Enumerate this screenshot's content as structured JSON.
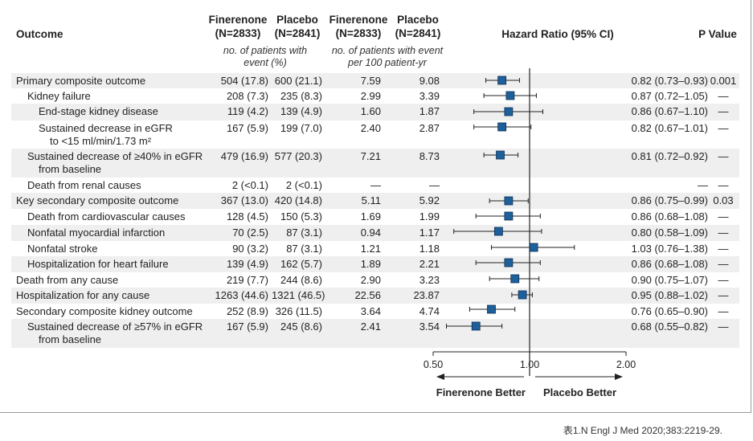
{
  "headers": {
    "outcome": "Outcome",
    "finerenone_events": "Finerenone\n(N=2833)",
    "placebo_events": "Placebo\n(N=2841)",
    "finerenone_rate": "Finerenone\n(N=2833)",
    "placebo_rate": "Placebo\n(N=2841)",
    "hazard_ratio": "Hazard Ratio (95% CI)",
    "p_value": "P Value",
    "events_sub": "no. of patients with\nevent (%)",
    "rate_sub": "no. of patients with event\nper 100 patient-yr"
  },
  "rows": [
    {
      "label": "Primary composite outcome",
      "indent": 0,
      "fin": "504 (17.8)",
      "pla": "600 (21.1)",
      "fin_rate": "7.59",
      "pla_rate": "9.08",
      "hr_text": "0.82 (0.73–0.93)",
      "p": "0.001"
    },
    {
      "label": "Kidney failure",
      "indent": 1,
      "fin": "208 (7.3)",
      "pla": "235 (8.3)",
      "fin_rate": "2.99",
      "pla_rate": "3.39",
      "hr_text": "0.87 (0.72–1.05)",
      "p": "—"
    },
    {
      "label": "End-stage kidney disease",
      "indent": 2,
      "fin": "119 (4.2)",
      "pla": "139 (4.9)",
      "fin_rate": "1.60",
      "pla_rate": "1.87",
      "hr_text": "0.86 (0.67–1.10)",
      "p": "—"
    },
    {
      "label": "Sustained decrease in eGFR",
      "label2": "to <15 ml/min/1.73 m²",
      "indent": 2,
      "fin": "167 (5.9)",
      "pla": "199 (7.0)",
      "fin_rate": "2.40",
      "pla_rate": "2.87",
      "hr_text": "0.82 (0.67–1.01)",
      "p": "—"
    },
    {
      "label": "Sustained decrease of ≥40% in eGFR",
      "label2": "from baseline",
      "indent": 1,
      "fin": "479 (16.9)",
      "pla": "577 (20.3)",
      "fin_rate": "7.21",
      "pla_rate": "8.73",
      "hr_text": "0.81 (0.72–0.92)",
      "p": "—"
    },
    {
      "label": "Death from renal causes",
      "indent": 1,
      "fin": "2 (<0.1)",
      "pla": "2 (<0.1)",
      "fin_rate": "—",
      "pla_rate": "—",
      "hr_text": "—",
      "p": "—"
    },
    {
      "label": "Key secondary composite outcome",
      "indent": 0,
      "fin": "367 (13.0)",
      "pla": "420 (14.8)",
      "fin_rate": "5.11",
      "pla_rate": "5.92",
      "hr_text": "0.86 (0.75–0.99)",
      "p": "0.03"
    },
    {
      "label": "Death from cardiovascular causes",
      "indent": 1,
      "fin": "128 (4.5)",
      "pla": "150 (5.3)",
      "fin_rate": "1.69",
      "pla_rate": "1.99",
      "hr_text": "0.86 (0.68–1.08)",
      "p": "—"
    },
    {
      "label": "Nonfatal myocardial infarction",
      "indent": 1,
      "fin": "70 (2.5)",
      "pla": "87 (3.1)",
      "fin_rate": "0.94",
      "pla_rate": "1.17",
      "hr_text": "0.80 (0.58–1.09)",
      "p": "—"
    },
    {
      "label": "Nonfatal stroke",
      "indent": 1,
      "fin": "90 (3.2)",
      "pla": "87 (3.1)",
      "fin_rate": "1.21",
      "pla_rate": "1.18",
      "hr_text": "1.03 (0.76–1.38)",
      "p": "—"
    },
    {
      "label": "Hospitalization for heart failure",
      "indent": 1,
      "fin": "139 (4.9)",
      "pla": "162 (5.7)",
      "fin_rate": "1.89",
      "pla_rate": "2.21",
      "hr_text": "0.86 (0.68–1.08)",
      "p": "—"
    },
    {
      "label": "Death from any cause",
      "indent": 0,
      "fin": "219 (7.7)",
      "pla": "244 (8.6)",
      "fin_rate": "2.90",
      "pla_rate": "3.23",
      "hr_text": "0.90 (0.75–1.07)",
      "p": "—"
    },
    {
      "label": "Hospitalization for any cause",
      "indent": 0,
      "fin": "1263 (44.6)",
      "pla": "1321 (46.5)",
      "fin_rate": "22.56",
      "pla_rate": "23.87",
      "hr_text": "0.95 (0.88–1.02)",
      "p": "—"
    },
    {
      "label": "Secondary composite kidney outcome",
      "indent": 0,
      "fin": "252 (8.9)",
      "pla": "326 (11.5)",
      "fin_rate": "3.64",
      "pla_rate": "4.74",
      "hr_text": "0.76 (0.65–0.90)",
      "p": "—"
    },
    {
      "label": "Sustained decrease of ≥57% in eGFR",
      "label2": "from baseline",
      "indent": 1,
      "fin": "167 (5.9)",
      "pla": "245 (8.6)",
      "fin_rate": "2.41",
      "pla_rate": "3.54",
      "hr_text": "0.68 (0.55–0.82)",
      "p": "—"
    }
  ],
  "chart_data": {
    "type": "forest",
    "x_scale": "log",
    "xlim": [
      0.5,
      2.0
    ],
    "x_ticks": [
      "0.50",
      "1.00",
      "2.00"
    ],
    "reference_line": 1.0,
    "direction_labels": {
      "left": "Finerenone Better",
      "right": "Placebo Better"
    },
    "marker_color": "#1f5f9a",
    "estimates": [
      {
        "hr": 0.82,
        "lo": 0.73,
        "hi": 0.93
      },
      {
        "hr": 0.87,
        "lo": 0.72,
        "hi": 1.05
      },
      {
        "hr": 0.86,
        "lo": 0.67,
        "hi": 1.1
      },
      {
        "hr": 0.82,
        "lo": 0.67,
        "hi": 1.01
      },
      {
        "hr": 0.81,
        "lo": 0.72,
        "hi": 0.92
      },
      null,
      {
        "hr": 0.86,
        "lo": 0.75,
        "hi": 0.99
      },
      {
        "hr": 0.86,
        "lo": 0.68,
        "hi": 1.08
      },
      {
        "hr": 0.8,
        "lo": 0.58,
        "hi": 1.09
      },
      {
        "hr": 1.03,
        "lo": 0.76,
        "hi": 1.38
      },
      {
        "hr": 0.86,
        "lo": 0.68,
        "hi": 1.08
      },
      {
        "hr": 0.9,
        "lo": 0.75,
        "hi": 1.07
      },
      {
        "hr": 0.95,
        "lo": 0.88,
        "hi": 1.02
      },
      {
        "hr": 0.76,
        "lo": 0.65,
        "hi": 0.9
      },
      {
        "hr": 0.68,
        "lo": 0.55,
        "hi": 0.82
      }
    ]
  },
  "caption": "表1.N Engl J Med 2020;383:2219-29."
}
